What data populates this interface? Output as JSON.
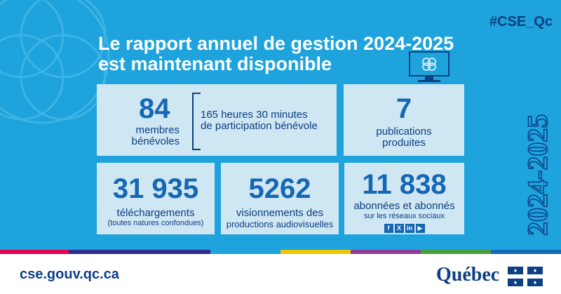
{
  "banner": {
    "hashtag": "#CSE_Qc",
    "title_line1": "Le rapport annuel de gestion 2024-2025",
    "title_line2": "est maintenant disponible",
    "year_vertical": "2024-2025",
    "bg_color": "#1ea3dc"
  },
  "cards": {
    "members": {
      "value": "84",
      "label1": "membres",
      "label2": "bénévoles"
    },
    "hours": {
      "line1": "165 heures 30 minutes",
      "line2": "de participation bénévole"
    },
    "publications": {
      "value": "7",
      "label1": "publications",
      "label2": "produites"
    },
    "downloads": {
      "value": "31 935",
      "label1": "téléchargements",
      "sub": "(toutes natures confondues)"
    },
    "views": {
      "value": "5262",
      "label1": "visionnements des",
      "label2": "productions audiovisuelles"
    },
    "subscribers": {
      "value": "11 838",
      "label1": "abonnées et abonnés",
      "sub": "sur les réseaux sociaux",
      "icons": [
        "facebook-icon",
        "x-icon",
        "linkedin-icon",
        "youtube-icon"
      ]
    }
  },
  "footer": {
    "url": "cse.gouv.qc.ca",
    "brand": "Québec",
    "stripe_colors": [
      "#e4004f",
      "#2f2d8b",
      "#1ea3dc",
      "#f1c400",
      "#8e3e95",
      "#4b9c3c",
      "#1467b3"
    ]
  }
}
